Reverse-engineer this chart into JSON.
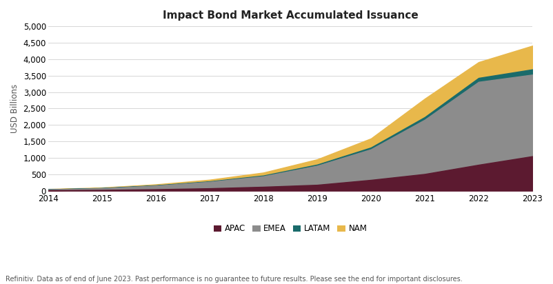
{
  "title": "Impact Bond Market Accumulated Issuance",
  "ylabel": "USD Billions",
  "footnote": "Refinitiv. Data as of end of June 2023. Past performance is no guarantee to future results. Please see the end for important disclosures.",
  "years": [
    2014,
    2015,
    2016,
    2017,
    2018,
    2019,
    2020,
    2021,
    2022,
    2023
  ],
  "APAC": [
    15,
    25,
    45,
    75,
    120,
    180,
    330,
    510,
    790,
    1050
  ],
  "EMEA": [
    25,
    50,
    110,
    195,
    320,
    580,
    930,
    1650,
    2520,
    2480
  ],
  "LATAM": [
    4,
    7,
    10,
    15,
    22,
    35,
    55,
    80,
    120,
    160
  ],
  "NAM": [
    8,
    15,
    28,
    50,
    90,
    160,
    275,
    560,
    480,
    720
  ],
  "colors": {
    "APAC": "#5c1a30",
    "EMEA": "#8c8c8c",
    "LATAM": "#1a6b6b",
    "NAM": "#e8b84b"
  },
  "ylim": [
    0,
    5000
  ],
  "yticks": [
    0,
    500,
    1000,
    1500,
    2000,
    2500,
    3000,
    3500,
    4000,
    4500,
    5000
  ],
  "background_color": "#ffffff",
  "grid_color": "#d0d0d0",
  "title_fontsize": 11,
  "legend_fontsize": 8.5,
  "tick_fontsize": 8.5,
  "ylabel_fontsize": 8.5
}
